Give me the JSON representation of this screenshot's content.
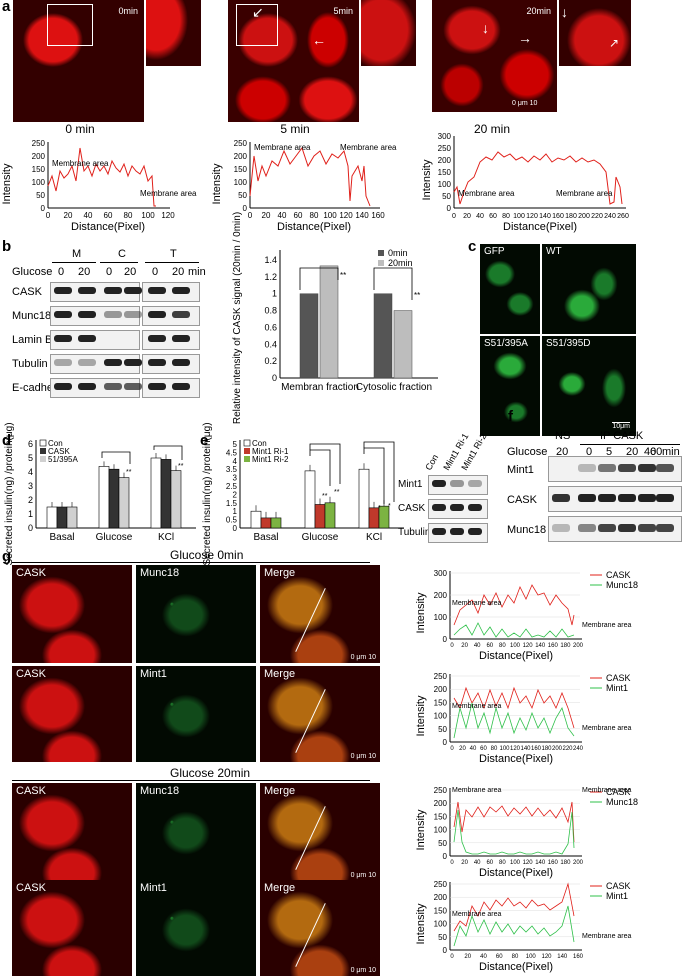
{
  "panels": {
    "a": {
      "letter": "a",
      "images": [
        {
          "time": "0min",
          "caption": "0 min"
        },
        {
          "time": "5min",
          "caption": "5 min"
        },
        {
          "time": "20min",
          "caption": "20 min"
        }
      ],
      "plots": [
        {
          "ylabel": "Intensity",
          "xlabel": "Distance(Pixel)",
          "yticks": [
            "0",
            "50",
            "100",
            "150",
            "200",
            "250"
          ],
          "xticks": [
            "0",
            "20",
            "40",
            "60",
            "80",
            "100",
            "120"
          ],
          "annotations": [
            "Membrane area",
            "Membrane area"
          ]
        },
        {
          "ylabel": "Intensity",
          "xlabel": "Distance(Pixel)",
          "yticks": [
            "0",
            "50",
            "100",
            "150",
            "200",
            "250"
          ],
          "xticks": [
            "0",
            "20",
            "40",
            "60",
            "80",
            "100",
            "120",
            "140",
            "160"
          ],
          "annotations": [
            "Membrane area",
            "Membrane area"
          ]
        },
        {
          "ylabel": "Intensity",
          "xlabel": "Distance(Pixel)",
          "yticks": [
            "0",
            "50",
            "100",
            "150",
            "200",
            "250",
            "300"
          ],
          "xticks": [
            "0",
            "20",
            "40",
            "60",
            "80",
            "100",
            "120",
            "140",
            "160",
            "180",
            "200",
            "220",
            "240",
            "260"
          ],
          "annotations": [
            "Membrane area",
            "Membrane area"
          ]
        }
      ]
    },
    "b": {
      "letter": "b",
      "groups": [
        "M",
        "C",
        "T"
      ],
      "glucose_label": "Glucose",
      "glucose_values": [
        "0",
        "20",
        "0",
        "20",
        "0",
        "20"
      ],
      "unit": "min",
      "rows": [
        "CASK",
        "Munc18",
        "Lamin B",
        "Tubulin",
        "E-cadherin"
      ],
      "chart": {
        "ylabel": "Relative intensity of CASK signal (20min / 0min)",
        "yticks": [
          "0",
          "0.2",
          "0.4",
          "0.6",
          "0.8",
          "1",
          "1.2",
          "1.4"
        ],
        "categories": [
          "Membran fraction",
          "Cytosolic fraction"
        ],
        "legend": [
          "0min",
          "20min"
        ],
        "sig": "**"
      }
    },
    "c": {
      "letter": "c",
      "labels": [
        "GFP",
        "WT",
        "S51/395A",
        "S51/395D"
      ],
      "scale": "10μm"
    },
    "d": {
      "letter": "d",
      "ylabel": "Secreted insulin(ng) /protein(μg)",
      "yticks": [
        "0",
        "1",
        "2",
        "3",
        "4",
        "5",
        "6"
      ],
      "categories": [
        "Basal",
        "Glucose",
        "KCl"
      ],
      "legend": [
        "Con",
        "CASK",
        "51/395A"
      ],
      "sig": "**"
    },
    "e": {
      "letter": "e",
      "ylabel": "Secreted insulin(ng) /protein(μg)",
      "yticks": [
        "0",
        "0.5",
        "1",
        "1.5",
        "2",
        "2.5",
        "3",
        "3.5",
        "4",
        "4.5",
        "5"
      ],
      "categories": [
        "Basal",
        "Glucose",
        "KCl"
      ],
      "legend": [
        "Con",
        "Mint1 Ri-1",
        "Mint1 Ri-2"
      ],
      "blot_cols": [
        "Con",
        "Mint1 Ri-1",
        "Mint1 Ri-2"
      ],
      "blot_rows": [
        "Mint1",
        "CASK",
        "Tubulin"
      ],
      "sig": "**",
      "sig_single": "*"
    },
    "f": {
      "letter": "f",
      "ns": "NS",
      "ip": "IP CASK",
      "glucose_label": "Glucose",
      "lanes": [
        "20",
        "0",
        "5",
        "20",
        "40",
        "60"
      ],
      "unit": "min",
      "rows": [
        "Mint1",
        "CASK",
        "Munc18"
      ]
    },
    "g": {
      "letter": "g",
      "section_titles": [
        "Glucose 0min",
        "Glucose 20min"
      ],
      "rows": [
        [
          "CASK",
          "Munc18",
          "Merge"
        ],
        [
          "CASK",
          "Mint1",
          "Merge"
        ],
        [
          "CASK",
          "Munc18",
          "Merge"
        ],
        [
          "CASK",
          "Mint1",
          "Merge"
        ]
      ],
      "plots": [
        {
          "legend": [
            "CASK",
            "Munc18"
          ],
          "ylabel": "Intensity",
          "xlabel": "Distance(Pixel)",
          "yticks": [
            "0",
            "100",
            "200",
            "300"
          ],
          "xticks": [
            "0",
            "20",
            "40",
            "60",
            "80",
            "100",
            "120",
            "140",
            "160",
            "180",
            "200"
          ],
          "annotations": [
            "Membrane area",
            "Membrane area"
          ]
        },
        {
          "legend": [
            "CASK",
            "Mint1"
          ],
          "ylabel": "Intensity",
          "xlabel": "Distance(Pixel)",
          "yticks": [
            "0",
            "50",
            "100",
            "150",
            "200",
            "250"
          ],
          "xticks": [
            "0",
            "20",
            "40",
            "60",
            "80",
            "100",
            "120",
            "140",
            "160",
            "180",
            "200",
            "220",
            "240"
          ],
          "annotations": [
            "Membrane area",
            "Membrane area"
          ]
        },
        {
          "legend": [
            "CASK",
            "Munc18"
          ],
          "ylabel": "Intensity",
          "xlabel": "Distance(Pixel)",
          "yticks": [
            "0",
            "50",
            "100",
            "150",
            "200",
            "250"
          ],
          "xticks": [
            "0",
            "20",
            "40",
            "60",
            "80",
            "100",
            "120",
            "140",
            "160",
            "180",
            "200"
          ],
          "annotations": [
            "Membrane area",
            "Membrane area"
          ]
        },
        {
          "legend": [
            "CASK",
            "Mint1"
          ],
          "ylabel": "Intensity",
          "xlabel": "Distance(Pixel)",
          "yticks": [
            "0",
            "50",
            "100",
            "150",
            "200",
            "250"
          ],
          "xticks": [
            "0",
            "20",
            "40",
            "60",
            "80",
            "100",
            "120",
            "140",
            "160"
          ],
          "annotations": [
            "Membrane area",
            "Membrane area"
          ]
        }
      ],
      "scale": "0 μm 10"
    }
  },
  "colors": {
    "red": "#e0201a",
    "green": "#2fc04a",
    "dark_bar": "#555555",
    "light_bar": "#bdbdbd"
  },
  "chart_data": [
    {
      "type": "bar",
      "title": "",
      "ylabel": "Relative intensity of CASK signal (20min / 0min)",
      "categories": [
        "Membran fraction",
        "Cytosolic fraction"
      ],
      "series": [
        {
          "name": "0min",
          "values": [
            1.0,
            1.0
          ]
        },
        {
          "name": "20min",
          "values": [
            1.33,
            0.8
          ]
        }
      ],
      "ylim": [
        0,
        1.4
      ]
    },
    {
      "type": "bar",
      "title": "",
      "ylabel": "Secreted insulin(ng) /protein(μg)",
      "categories": [
        "Basal",
        "Glucose",
        "KCl"
      ],
      "series": [
        {
          "name": "Con",
          "values": [
            1.5,
            4.4,
            5.0
          ]
        },
        {
          "name": "CASK",
          "values": [
            1.5,
            4.2,
            4.9
          ]
        },
        {
          "name": "51/395A",
          "values": [
            1.5,
            3.6,
            4.1
          ]
        }
      ],
      "ylim": [
        0,
        6
      ]
    },
    {
      "type": "bar",
      "title": "",
      "ylabel": "Secreted insulin(ng) /protein(μg)",
      "categories": [
        "Basal",
        "Glucose",
        "KCl"
      ],
      "series": [
        {
          "name": "Con",
          "values": [
            1.0,
            3.4,
            3.5
          ]
        },
        {
          "name": "Mint1 Ri-1",
          "values": [
            0.6,
            1.4,
            1.2
          ]
        },
        {
          "name": "Mint1 Ri-2",
          "values": [
            0.6,
            1.5,
            1.3
          ]
        }
      ],
      "ylim": [
        0,
        5
      ]
    }
  ]
}
